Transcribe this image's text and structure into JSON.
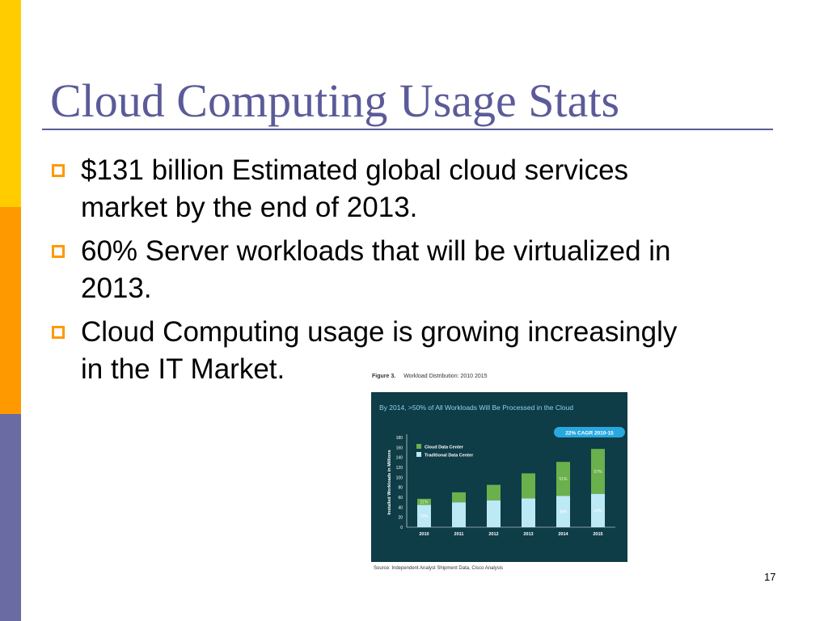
{
  "slide": {
    "title": "Cloud Computing Usage Stats",
    "bullets": [
      {
        "lines": [
          "$131 billion Estimated global cloud services",
          "market by the end of 2013."
        ]
      },
      {
        "lines": [
          "60% Server workloads that will be virtualized in",
          "2013."
        ]
      },
      {
        "lines": [
          "Cloud Computing usage is growing increasingly",
          "in the IT Market."
        ]
      }
    ],
    "page_number": "17"
  },
  "colors": {
    "title": "#5b5b9a",
    "side_top": "#ffcc00",
    "side_mid": "#ff9900",
    "side_bottom": "#6b6ba3",
    "bullet_marker": "#ff9900",
    "chart_background": "#0e3c47",
    "cloud": "#6ab04c",
    "traditional": "#bde8f5",
    "badge": "#29a8e0"
  },
  "figure": {
    "label": "Figure 3.",
    "caption": "Workload Distribution: 2010  2015",
    "source": "Source: Independent Analyst Shipment Data, Cisco Analysis"
  },
  "chart_data": {
    "type": "bar",
    "stacked": true,
    "title": "By 2014, >50% of All Workloads Will Be Processed in the Cloud",
    "badge": "22% CAGR 2010-15",
    "ylabel": "Installed Workloads in Millions",
    "xlabel": "",
    "ylim": [
      0,
      180
    ],
    "yticks": [
      0,
      20,
      40,
      60,
      80,
      100,
      120,
      140,
      160,
      180
    ],
    "categories": [
      "2010",
      "2011",
      "2012",
      "2013",
      "2014",
      "2015"
    ],
    "series": [
      {
        "name": "Traditional Data Center",
        "values": [
          45,
          50,
          54,
          58,
          63,
          67
        ],
        "color": "#bde8f5"
      },
      {
        "name": "Cloud Data Center",
        "values": [
          12,
          20,
          31,
          50,
          68,
          90
        ],
        "color": "#6ab04c"
      }
    ],
    "annotations": [
      {
        "category": "2010",
        "series": "Cloud Data Center",
        "text": "21%"
      },
      {
        "category": "2010",
        "series": "Traditional Data Center",
        "text": "79%"
      },
      {
        "category": "2014",
        "series": "Cloud Data Center",
        "text": "51%"
      },
      {
        "category": "2014",
        "series": "Traditional Data Center",
        "text": "49%"
      },
      {
        "category": "2015",
        "series": "Cloud Data Center",
        "text": "57%"
      },
      {
        "category": "2015",
        "series": "Traditional Data Center",
        "text": "43%"
      }
    ],
    "legend_position": "top-left",
    "grid": false
  }
}
